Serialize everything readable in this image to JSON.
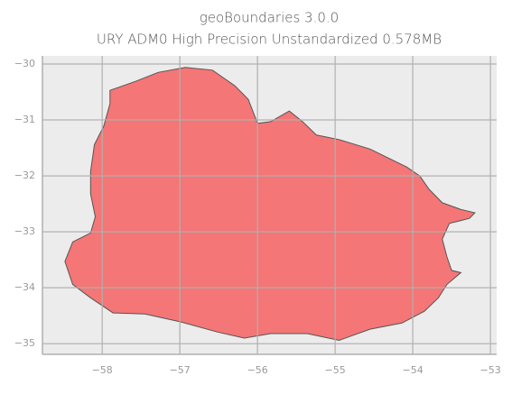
{
  "chart_data": {
    "type": "polygon",
    "title": "geoBoundaries 3.0.0",
    "subtitle": "URY ADM0 High Precision Unstandardized 0.578MB",
    "color": "#f47676",
    "edge_color": "#555555",
    "grid": true,
    "xlim": [
      -58.77,
      -52.92
    ],
    "ylim": [
      -35.19,
      -29.855
    ],
    "xticks": [
      {
        "value": -58,
        "label": "−58"
      },
      {
        "value": -57,
        "label": "−57"
      },
      {
        "value": -56,
        "label": "−56"
      },
      {
        "value": -55,
        "label": "−55"
      },
      {
        "value": -54,
        "label": "−54"
      },
      {
        "value": -53,
        "label": "−53"
      }
    ],
    "yticks": [
      {
        "value": -30,
        "label": "−30"
      },
      {
        "value": -31,
        "label": "−31"
      },
      {
        "value": -32,
        "label": "−32"
      },
      {
        "value": -33,
        "label": "−33"
      },
      {
        "value": -34,
        "label": "−34"
      },
      {
        "value": -35,
        "label": "−35"
      }
    ],
    "x": [
      -57.9,
      -57.57,
      -57.28,
      -56.93,
      -56.58,
      -56.29,
      -56.12,
      -56.0,
      -55.83,
      -55.59,
      -55.42,
      -55.24,
      -54.95,
      -54.55,
      -54.08,
      -53.91,
      -53.79,
      -53.62,
      -53.38,
      -53.2,
      -53.27,
      -53.53,
      -53.62,
      -53.56,
      -53.5,
      -53.38,
      -53.56,
      -53.67,
      -53.85,
      -54.14,
      -54.55,
      -54.95,
      -55.36,
      -55.83,
      -56.17,
      -56.52,
      -56.99,
      -57.45,
      -57.86,
      -58.15,
      -58.38,
      -58.48,
      -58.38,
      -58.15,
      -58.09,
      -58.15,
      -58.15,
      -58.1,
      -57.98,
      -57.9
    ],
    "y": [
      -30.47,
      -30.31,
      -30.15,
      -30.06,
      -30.11,
      -30.39,
      -30.63,
      -31.06,
      -31.03,
      -30.84,
      -31.03,
      -31.27,
      -31.35,
      -31.52,
      -31.84,
      -32.0,
      -32.24,
      -32.48,
      -32.6,
      -32.66,
      -32.76,
      -32.85,
      -33.13,
      -33.45,
      -33.69,
      -33.73,
      -33.94,
      -34.18,
      -34.42,
      -34.63,
      -34.74,
      -34.94,
      -34.82,
      -34.82,
      -34.9,
      -34.79,
      -34.61,
      -34.47,
      -34.45,
      -34.18,
      -33.94,
      -33.53,
      -33.18,
      -33.02,
      -32.73,
      -32.32,
      -31.92,
      -31.44,
      -31.11,
      -30.71
    ]
  }
}
